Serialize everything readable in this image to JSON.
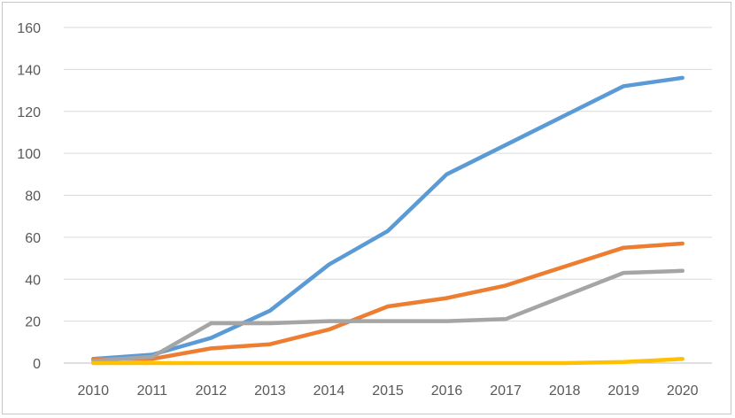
{
  "chart_data": {
    "type": "line",
    "title": "",
    "xlabel": "",
    "ylabel": "",
    "categories": [
      "2010",
      "2011",
      "2012",
      "2013",
      "2014",
      "2015",
      "2016",
      "2017",
      "2018",
      "2019",
      "2020"
    ],
    "ylim": [
      0,
      160
    ],
    "yticks": [
      0,
      20,
      40,
      60,
      80,
      100,
      120,
      140,
      160
    ],
    "grid": true,
    "legend": "none",
    "series": [
      {
        "color": "#5B9BD5",
        "values": [
          2,
          4,
          12,
          25,
          47,
          63,
          90,
          104,
          118,
          132,
          136
        ]
      },
      {
        "color": "#ED7D31",
        "values": [
          2,
          2,
          7,
          9,
          16,
          27,
          31,
          37,
          46,
          55,
          57
        ]
      },
      {
        "color": "#A5A5A5",
        "values": [
          1,
          3,
          19,
          19,
          20,
          20,
          20,
          21,
          32,
          43,
          44
        ]
      },
      {
        "color": "#FFC000",
        "values": [
          0,
          0,
          0,
          0,
          0,
          0,
          0,
          0,
          0,
          0.5,
          2
        ]
      }
    ]
  }
}
